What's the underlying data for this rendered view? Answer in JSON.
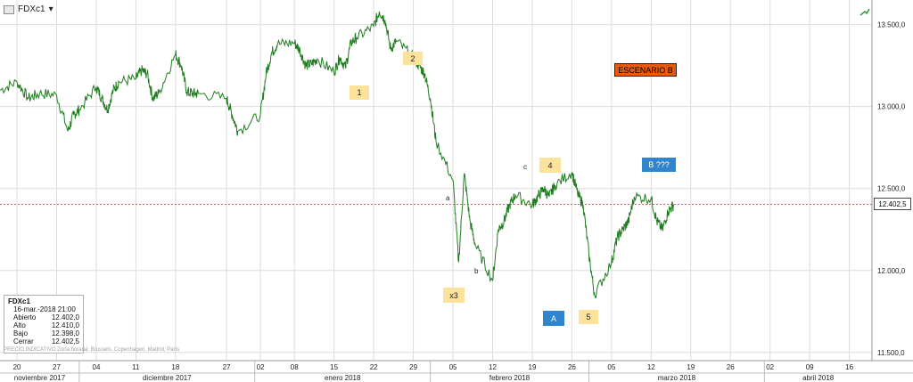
{
  "header": {
    "symbol": "FDXc1",
    "dropdown_icon": "chevron-down-icon"
  },
  "info_box": {
    "title": "FDXc1",
    "date": "16-mar.-2018 21:00",
    "rows": [
      {
        "label": "Abierto",
        "value": "12.402,0"
      },
      {
        "label": "Alto",
        "value": "12.410,0"
      },
      {
        "label": "Bajo",
        "value": "12.398,0"
      },
      {
        "label": "Cerrar",
        "value": "12.402,5"
      }
    ]
  },
  "footer_note": "PRECIO INDICATIVO  Zona horaria: Brussels, Copenhagen, Madrid, Paris",
  "last_price_tag": "12.402,5",
  "annotations": [
    {
      "text": "1",
      "style": "yellow"
    },
    {
      "text": "2",
      "style": "yellow"
    },
    {
      "text": "x3",
      "style": "yellow"
    },
    {
      "text": "4",
      "style": "yellow"
    },
    {
      "text": "5",
      "style": "yellow"
    },
    {
      "text": "A",
      "style": "blue"
    },
    {
      "text": "B ???",
      "style": "blue"
    },
    {
      "text": "ESCENARIO B",
      "style": "orange"
    }
  ],
  "wave_letters": [
    "a",
    "b",
    "c"
  ],
  "colors": {
    "series": "#1e7d1e",
    "grid": "#dcdcdc",
    "last_price_line": "#c0392b",
    "yellow": "#fce29a",
    "blue": "#2f86cf",
    "orange": "#e65b0f"
  },
  "chart_data": {
    "type": "line",
    "title": "",
    "series": [
      {
        "values": [
          [
            "2017-11-17",
            13100
          ],
          [
            "2017-11-20",
            13150
          ],
          [
            "2017-11-22",
            13050
          ],
          [
            "2017-11-24",
            13080
          ],
          [
            "2017-11-27",
            13070
          ],
          [
            "2017-11-29",
            12850
          ],
          [
            "2017-11-30",
            12950
          ],
          [
            "2017-12-01",
            12980
          ],
          [
            "2017-12-04",
            13120
          ],
          [
            "2017-12-05",
            13050
          ],
          [
            "2017-12-06",
            12980
          ],
          [
            "2017-12-07",
            13100
          ],
          [
            "2017-12-08",
            13150
          ],
          [
            "2017-12-11",
            13170
          ],
          [
            "2017-12-12",
            13220
          ],
          [
            "2017-12-13",
            13200
          ],
          [
            "2017-12-14",
            13050
          ],
          [
            "2017-12-15",
            13080
          ],
          [
            "2017-12-18",
            13320
          ],
          [
            "2017-12-19",
            13250
          ],
          [
            "2017-12-20",
            13090
          ],
          [
            "2017-12-21",
            13080
          ],
          [
            "2017-12-22",
            13080
          ],
          [
            "2017-12-27",
            13050
          ],
          [
            "2017-12-28",
            12950
          ],
          [
            "2017-12-29",
            12850
          ],
          [
            "2018-01-02",
            12950
          ],
          [
            "2018-01-03",
            13200
          ],
          [
            "2018-01-04",
            13330
          ],
          [
            "2018-01-05",
            13380
          ],
          [
            "2018-01-08",
            13390
          ],
          [
            "2018-01-09",
            13340
          ],
          [
            "2018-01-10",
            13250
          ],
          [
            "2018-01-11",
            13260
          ],
          [
            "2018-01-12",
            13290
          ],
          [
            "2018-01-15",
            13210
          ],
          [
            "2018-01-16",
            13300
          ],
          [
            "2018-01-17",
            13240
          ],
          [
            "2018-01-18",
            13390
          ],
          [
            "2018-01-19",
            13420
          ],
          [
            "2018-01-22",
            13490
          ],
          [
            "2018-01-23",
            13580
          ],
          [
            "2018-01-24",
            13530
          ],
          [
            "2018-01-25",
            13350
          ],
          [
            "2018-01-26",
            13400
          ],
          [
            "2018-01-29",
            13300
          ],
          [
            "2018-01-30",
            13250
          ],
          [
            "2018-01-31",
            13200
          ],
          [
            "2018-02-01",
            13050
          ],
          [
            "2018-02-02",
            12790
          ],
          [
            "2018-02-05",
            12550
          ],
          [
            "2018-02-06",
            12050
          ],
          [
            "2018-02-07",
            12590
          ],
          [
            "2018-02-08",
            12300
          ],
          [
            "2018-02-09",
            12150
          ],
          [
            "2018-02-12",
            11940
          ],
          [
            "2018-02-13",
            12250
          ],
          [
            "2018-02-14",
            12300
          ],
          [
            "2018-02-15",
            12400
          ],
          [
            "2018-02-16",
            12460
          ],
          [
            "2018-02-19",
            12400
          ],
          [
            "2018-02-20",
            12450
          ],
          [
            "2018-02-21",
            12500
          ],
          [
            "2018-02-22",
            12450
          ],
          [
            "2018-02-23",
            12520
          ],
          [
            "2018-02-26",
            12600
          ],
          [
            "2018-02-27",
            12470
          ],
          [
            "2018-02-28",
            12400
          ],
          [
            "2018-03-01",
            12100
          ],
          [
            "2018-03-02",
            11850
          ],
          [
            "2018-03-05",
            12050
          ],
          [
            "2018-03-06",
            12200
          ],
          [
            "2018-03-07",
            12250
          ],
          [
            "2018-03-08",
            12300
          ],
          [
            "2018-03-09",
            12450
          ],
          [
            "2018-03-12",
            12440
          ],
          [
            "2018-03-13",
            12300
          ],
          [
            "2018-03-14",
            12250
          ],
          [
            "2018-03-15",
            12360
          ],
          [
            "2018-03-16",
            12402.5
          ]
        ]
      }
    ],
    "x_ticks": [
      [
        "2017-11-20",
        "20"
      ],
      [
        "2017-11-27",
        "27"
      ],
      [
        "2017-12-04",
        "04"
      ],
      [
        "2017-12-11",
        "11"
      ],
      [
        "2017-12-18",
        "18"
      ],
      [
        "2017-12-27",
        "27"
      ],
      [
        "2018-01-02",
        "02"
      ],
      [
        "2018-01-08",
        "08"
      ],
      [
        "2018-01-15",
        "15"
      ],
      [
        "2018-01-22",
        "22"
      ],
      [
        "2018-01-29",
        "29"
      ],
      [
        "2018-02-05",
        "05"
      ],
      [
        "2018-02-12",
        "12"
      ],
      [
        "2018-02-19",
        "19"
      ],
      [
        "2018-02-26",
        "26"
      ],
      [
        "2018-03-05",
        "05"
      ],
      [
        "2018-03-12",
        "12"
      ],
      [
        "2018-03-19",
        "19"
      ],
      [
        "2018-03-26",
        "26"
      ],
      [
        "2018-04-02",
        "02"
      ],
      [
        "2018-04-09",
        "09"
      ],
      [
        "2018-04-16",
        "16"
      ]
    ],
    "month_labels": [
      "noviembre 2017",
      "diciembre 2017",
      "enero 2018",
      "febrero 2018",
      "marzo 2018",
      "abril 2018"
    ],
    "y_ticks": [
      11500,
      12000,
      12500,
      13000,
      13500
    ],
    "y_tick_labels": [
      "11.500,0",
      "12.000,0",
      "12.500,0",
      "13.000,0",
      "13.500,0"
    ],
    "ylim": [
      11450,
      13650
    ],
    "xlim": [
      "2017-11-17",
      "2018-04-20"
    ],
    "grid": true,
    "last_value": 12402.5
  }
}
